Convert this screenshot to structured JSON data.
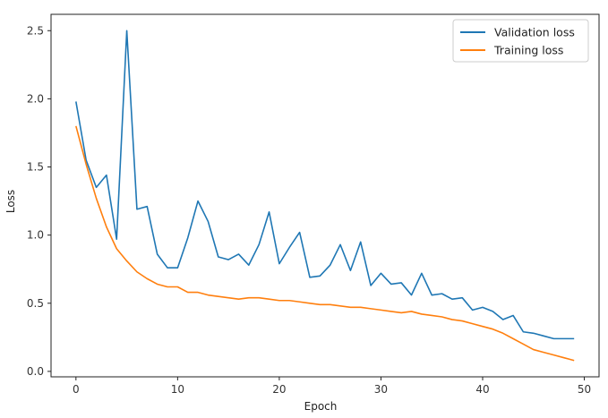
{
  "chart_data": {
    "type": "line",
    "title": "",
    "xlabel": "Epoch",
    "ylabel": "Loss",
    "xlim": [
      -2.45,
      51.45
    ],
    "ylim": [
      -0.04,
      2.62
    ],
    "xticks": [
      0,
      10,
      20,
      30,
      40,
      50
    ],
    "yticks": [
      0.0,
      0.5,
      1.0,
      1.5,
      2.0,
      2.5
    ],
    "xtick_labels": [
      "0",
      "10",
      "20",
      "30",
      "40",
      "50"
    ],
    "ytick_labels": [
      "0.0",
      "0.5",
      "1.0",
      "1.5",
      "2.0",
      "2.5"
    ],
    "grid": false,
    "legend_position": "top-right",
    "x": [
      0,
      1,
      2,
      3,
      4,
      5,
      6,
      7,
      8,
      9,
      10,
      11,
      12,
      13,
      14,
      15,
      16,
      17,
      18,
      19,
      20,
      21,
      22,
      23,
      24,
      25,
      26,
      27,
      28,
      29,
      30,
      31,
      32,
      33,
      34,
      35,
      36,
      37,
      38,
      39,
      40,
      41,
      42,
      43,
      44,
      45,
      46,
      47,
      48,
      49
    ],
    "series": [
      {
        "name": "Validation loss",
        "color": "#1f77b4",
        "values": [
          1.98,
          1.55,
          1.35,
          1.44,
          0.97,
          2.5,
          1.19,
          1.21,
          0.86,
          0.76,
          0.76,
          0.98,
          1.25,
          1.1,
          0.84,
          0.82,
          0.86,
          0.78,
          0.93,
          1.17,
          0.79,
          0.91,
          1.02,
          0.69,
          0.7,
          0.78,
          0.93,
          0.74,
          0.95,
          0.63,
          0.72,
          0.64,
          0.65,
          0.56,
          0.72,
          0.56,
          0.57,
          0.53,
          0.54,
          0.45,
          0.47,
          0.44,
          0.38,
          0.41,
          0.29,
          0.28,
          0.26,
          0.24,
          0.24,
          0.24
        ]
      },
      {
        "name": "Training loss",
        "color": "#ff7f0e",
        "values": [
          1.8,
          1.52,
          1.27,
          1.06,
          0.9,
          0.81,
          0.73,
          0.68,
          0.64,
          0.62,
          0.62,
          0.58,
          0.58,
          0.56,
          0.55,
          0.54,
          0.53,
          0.54,
          0.54,
          0.53,
          0.52,
          0.52,
          0.51,
          0.5,
          0.49,
          0.49,
          0.48,
          0.47,
          0.47,
          0.46,
          0.45,
          0.44,
          0.43,
          0.44,
          0.42,
          0.41,
          0.4,
          0.38,
          0.37,
          0.35,
          0.33,
          0.31,
          0.28,
          0.24,
          0.2,
          0.16,
          0.14,
          0.12,
          0.1,
          0.08
        ]
      }
    ]
  }
}
